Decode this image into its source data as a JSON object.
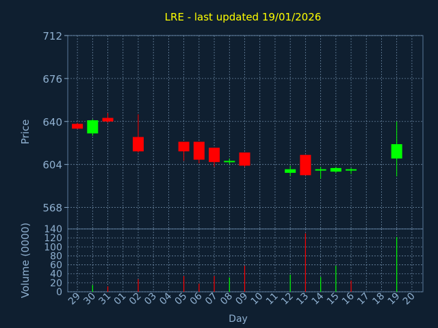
{
  "chart_data": {
    "type": "candlestick",
    "title": "LRE - last updated 19/01/2026",
    "xlabel": "Day",
    "colors": {
      "background": "#0f1f30",
      "up": "#00ff00",
      "down": "#ff0000",
      "axis_text": "#8fb0d0",
      "title": "#ffff00",
      "grid": "#8fb0d0"
    },
    "x_ticks": [
      "29",
      "30",
      "31",
      "01",
      "02",
      "03",
      "04",
      "05",
      "06",
      "07",
      "08",
      "09",
      "10",
      "11",
      "12",
      "13",
      "14",
      "15",
      "16",
      "17",
      "18",
      "19",
      "20"
    ],
    "price_panel": {
      "ylabel": "Price",
      "ylim": [
        550,
        712
      ],
      "yticks": [
        712,
        676,
        640,
        604,
        568
      ],
      "grid": true,
      "candles": [
        {
          "x": "29",
          "open": 638,
          "high": 639,
          "low": 634,
          "close": 634
        },
        {
          "x": "30",
          "open": 630,
          "high": 642,
          "low": 628,
          "close": 641
        },
        {
          "x": "31",
          "open": 643,
          "high": 647,
          "low": 639,
          "close": 640
        },
        {
          "x": "02",
          "open": 627,
          "high": 646,
          "low": 614,
          "close": 615
        },
        {
          "x": "05",
          "open": 623,
          "high": 623,
          "low": 607,
          "close": 615
        },
        {
          "x": "06",
          "open": 623,
          "high": 623,
          "low": 605,
          "close": 608
        },
        {
          "x": "07",
          "open": 618,
          "high": 618,
          "low": 602,
          "close": 606
        },
        {
          "x": "08",
          "open": 606,
          "high": 609,
          "low": 604,
          "close": 607
        },
        {
          "x": "09",
          "open": 614,
          "high": 614,
          "low": 602,
          "close": 603
        },
        {
          "x": "12",
          "open": 597,
          "high": 603,
          "low": 594,
          "close": 600
        },
        {
          "x": "13",
          "open": 612,
          "high": 612,
          "low": 595,
          "close": 595
        },
        {
          "x": "14",
          "open": 599,
          "high": 602,
          "low": 592,
          "close": 600
        },
        {
          "x": "15",
          "open": 598,
          "high": 602,
          "low": 597,
          "close": 601
        },
        {
          "x": "16",
          "open": 600,
          "high": 601,
          "low": 596,
          "close": 600
        },
        {
          "x": "19",
          "open": 609,
          "high": 640,
          "low": 594,
          "close": 621
        }
      ]
    },
    "volume_panel": {
      "ylabel": "Volume (0000)",
      "ylim": [
        0,
        140
      ],
      "yticks": [
        140,
        120,
        100,
        80,
        60,
        40,
        20,
        0
      ],
      "grid": true,
      "bars": [
        {
          "x": "30",
          "value": 15,
          "color": "#00ff00"
        },
        {
          "x": "31",
          "value": 12,
          "color": "#ff0000"
        },
        {
          "x": "02",
          "value": 28,
          "color": "#ff0000"
        },
        {
          "x": "05",
          "value": 35,
          "color": "#ff0000"
        },
        {
          "x": "06",
          "value": 18,
          "color": "#ff0000"
        },
        {
          "x": "07",
          "value": 35,
          "color": "#ff0000"
        },
        {
          "x": "08",
          "value": 32,
          "color": "#00ff00"
        },
        {
          "x": "09",
          "value": 58,
          "color": "#ff0000"
        },
        {
          "x": "12",
          "value": 38,
          "color": "#00ff00"
        },
        {
          "x": "13",
          "value": 130,
          "color": "#ff0000"
        },
        {
          "x": "14",
          "value": 33,
          "color": "#00ff00"
        },
        {
          "x": "15",
          "value": 58,
          "color": "#00ff00"
        },
        {
          "x": "16",
          "value": 25,
          "color": "#ff0000"
        },
        {
          "x": "19",
          "value": 122,
          "color": "#00ff00"
        }
      ]
    }
  }
}
